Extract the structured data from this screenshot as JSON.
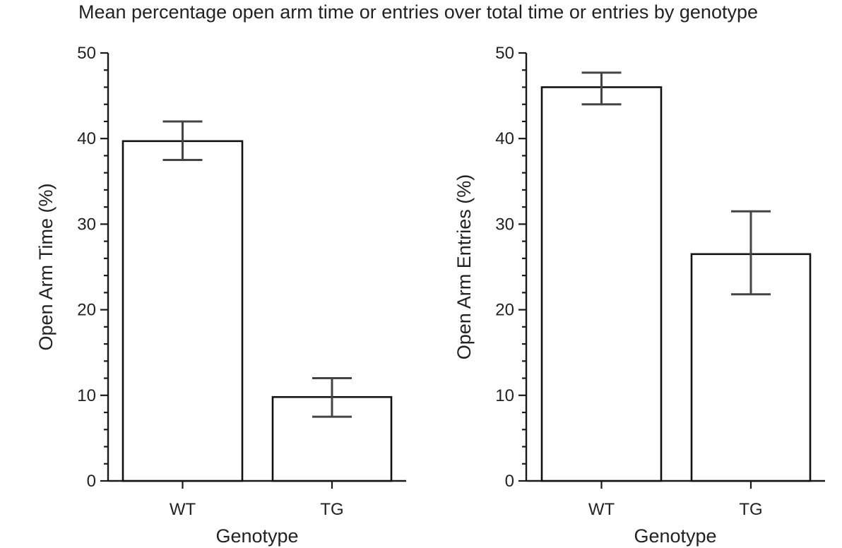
{
  "figure": {
    "title": "Mean percentage open arm time or entries over total time or entries by genotype"
  },
  "chart_data": [
    {
      "type": "bar",
      "categories": [
        "WT",
        "TG"
      ],
      "values": [
        39.7,
        9.8
      ],
      "error_low": [
        37.5,
        7.5
      ],
      "error_high": [
        42.0,
        12.0
      ],
      "xlabel": "Genotype",
      "ylabel": "Open Arm Time (%)",
      "ylim": [
        0,
        50
      ],
      "major_ticks": [
        0,
        10,
        20,
        30,
        40,
        50
      ],
      "tick_labels": [
        "0",
        "10",
        "20",
        "30",
        "40",
        "50"
      ],
      "minor_ticks": [
        2,
        4,
        6,
        8,
        12,
        14,
        16,
        18,
        22,
        24,
        26,
        28,
        32,
        34,
        36,
        38,
        42,
        44,
        46,
        48
      ],
      "grid": false,
      "legend": false,
      "bar_fill": "#ffffff",
      "bar_edge": "#111111",
      "error_color": "#444444"
    },
    {
      "type": "bar",
      "categories": [
        "WT",
        "TG"
      ],
      "values": [
        46.0,
        26.5
      ],
      "error_low": [
        44.0,
        21.8
      ],
      "error_high": [
        47.7,
        31.5
      ],
      "xlabel": "Genotype",
      "ylabel": "Open Arm Entries (%)",
      "ylim": [
        0,
        50
      ],
      "major_ticks": [
        0,
        10,
        20,
        30,
        40,
        50
      ],
      "tick_labels": [
        "0",
        "10",
        "20",
        "30",
        "40",
        "50"
      ],
      "minor_ticks": [
        2,
        4,
        6,
        8,
        12,
        14,
        16,
        18,
        22,
        24,
        26,
        28,
        32,
        34,
        36,
        38,
        42,
        44,
        46,
        48
      ],
      "grid": false,
      "legend": false,
      "bar_fill": "#ffffff",
      "bar_edge": "#111111",
      "error_color": "#444444"
    }
  ]
}
